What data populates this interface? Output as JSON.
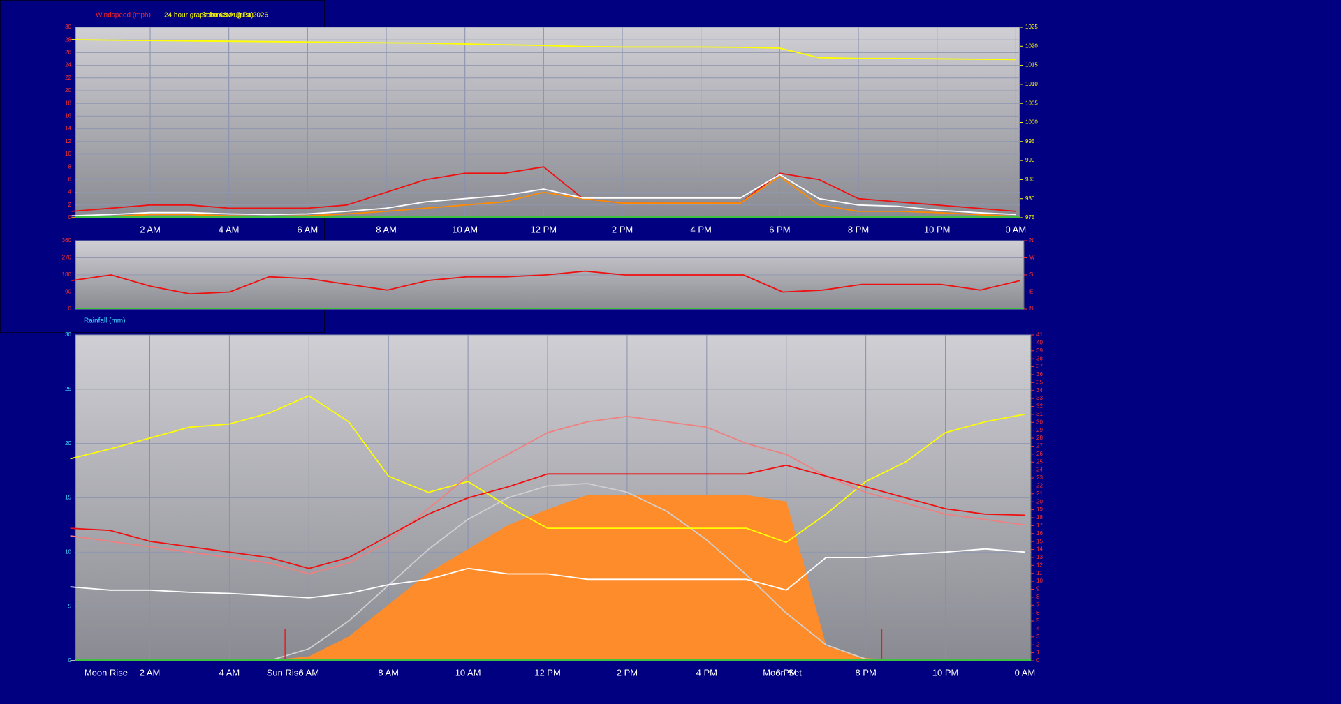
{
  "chart_data": [
    {
      "type": "line",
      "title": "24 hour graph for 08 August 2026",
      "ylabel": "Windspeed (mph)",
      "y2label": "Barometer (hPa)",
      "x": [
        0,
        1,
        2,
        3,
        4,
        5,
        6,
        7,
        8,
        9,
        10,
        11,
        12,
        13,
        14,
        15,
        16,
        17,
        18,
        19,
        20,
        21,
        22,
        23,
        24
      ],
      "xlim": [
        0.1,
        24.1
      ],
      "xticks": [
        {
          "value": 2,
          "label": "2 AM"
        },
        {
          "value": 4,
          "label": "4 AM"
        },
        {
          "value": 6,
          "label": "6 AM"
        },
        {
          "value": 8,
          "label": "8 AM"
        },
        {
          "value": 10,
          "label": "10 AM"
        },
        {
          "value": 12,
          "label": "12 PM"
        },
        {
          "value": 14,
          "label": "2 PM"
        },
        {
          "value": 16,
          "label": "4 PM"
        },
        {
          "value": 18,
          "label": "6 PM"
        },
        {
          "value": 20,
          "label": "8 PM"
        },
        {
          "value": 22,
          "label": "10 PM"
        },
        {
          "value": 24,
          "label": "0 AM"
        }
      ],
      "ylim": [
        0,
        30
      ],
      "yticks": [
        0,
        2,
        4,
        6,
        8,
        10,
        12,
        14,
        16,
        18,
        20,
        22,
        24,
        26,
        28,
        30
      ],
      "y2lim": [
        975,
        1025
      ],
      "y2ticks": [
        975,
        980,
        985,
        990,
        995,
        1000,
        1005,
        1010,
        1015,
        1020,
        1025
      ],
      "series": [
        {
          "color": "#ffff00",
          "axis": "y2",
          "values": [
            1021.7,
            1021.6,
            1021.5,
            1021.4,
            1021.3,
            1021.2,
            1021.1,
            1021,
            1020.9,
            1020.8,
            1020.6,
            1020.4,
            1020.2,
            1019.9,
            1019.8,
            1019.8,
            1019.8,
            1019.7,
            1019.5,
            1017,
            1016.8,
            1016.8,
            1016.7,
            1016.6,
            1016.5
          ]
        },
        {
          "color": "#ee1111",
          "values": [
            1,
            1.5,
            2,
            2,
            1.5,
            1.5,
            1.5,
            2,
            4,
            6,
            7,
            7,
            8,
            3,
            2.3,
            2.3,
            2.3,
            2.3,
            7,
            6,
            3,
            2.5,
            2,
            1.5,
            1
          ]
        },
        {
          "color": "#ff8c00",
          "values": [
            0,
            0.2,
            0.5,
            0.5,
            0.3,
            0.2,
            0.3,
            0.6,
            1,
            1.5,
            2,
            2.5,
            4,
            3,
            2.3,
            2.3,
            2.3,
            2.3,
            6.5,
            2,
            1,
            1,
            0.8,
            0.5,
            0.2
          ]
        },
        {
          "color": "#ffffff",
          "values": [
            0.3,
            0.5,
            0.8,
            0.8,
            0.6,
            0.5,
            0.6,
            1,
            1.5,
            2.5,
            3,
            3.5,
            4.5,
            3.1,
            3.1,
            3.1,
            3.1,
            3.1,
            6.8,
            3,
            2,
            1.8,
            1.2,
            0.8,
            0.5
          ]
        }
      ]
    },
    {
      "type": "line",
      "x": [
        0,
        1,
        2,
        3,
        4,
        5,
        6,
        7,
        8,
        9,
        10,
        11,
        12,
        13,
        14,
        15,
        16,
        17,
        18,
        19,
        20,
        21,
        22,
        23,
        24
      ],
      "xlim": [
        0.1,
        24.1
      ],
      "ylim": [
        0,
        360
      ],
      "yticks": [
        0,
        90,
        180,
        270,
        360
      ],
      "y2lim": [
        0,
        360
      ],
      "y2ticks": [
        {
          "value": 0,
          "label": "N"
        },
        {
          "value": 90,
          "label": "E"
        },
        {
          "value": 180,
          "label": "S"
        },
        {
          "value": 270,
          "label": "W"
        },
        {
          "value": 360,
          "label": "N"
        }
      ],
      "series": [
        {
          "color": "#ee1111",
          "values": [
            150,
            180,
            120,
            80,
            90,
            170,
            160,
            130,
            100,
            150,
            170,
            170,
            180,
            200,
            180,
            180,
            180,
            180,
            90,
            100,
            130,
            130,
            130,
            100,
            150
          ]
        }
      ]
    },
    {
      "type": "line",
      "ylabel": "Rainfall (mm)",
      "x": [
        0,
        1,
        2,
        3,
        4,
        5,
        6,
        7,
        8,
        9,
        10,
        11,
        12,
        13,
        14,
        15,
        16,
        17,
        18,
        19,
        20,
        21,
        22,
        23,
        24
      ],
      "xlim": [
        0.13,
        24.15
      ],
      "xticks": [
        {
          "value": 2,
          "label": "2 AM"
        },
        {
          "value": 4,
          "label": "4 AM"
        },
        {
          "value": 6,
          "label": "6 AM"
        },
        {
          "value": 8,
          "label": "8 AM"
        },
        {
          "value": 10,
          "label": "10 AM"
        },
        {
          "value": 12,
          "label": "12 PM"
        },
        {
          "value": 14,
          "label": "2 PM"
        },
        {
          "value": 16,
          "label": "4 PM"
        },
        {
          "value": 18,
          "label": "6 PM"
        },
        {
          "value": 20,
          "label": "8 PM"
        },
        {
          "value": 22,
          "label": "10 PM"
        },
        {
          "value": 24,
          "label": "0 AM"
        }
      ],
      "ylim": [
        0,
        30
      ],
      "yticks": [
        0,
        5,
        10,
        15,
        20,
        25,
        30
      ],
      "y2lim": [
        0,
        41
      ],
      "y2ticks": [
        0,
        1,
        2,
        3,
        4,
        5,
        6,
        7,
        8,
        9,
        10,
        11,
        12,
        13,
        14,
        15,
        16,
        17,
        18,
        19,
        20,
        21,
        22,
        23,
        24,
        25,
        26,
        27,
        28,
        29,
        30,
        31,
        32,
        33,
        34,
        35,
        36,
        37,
        38,
        39,
        40,
        41
      ],
      "series": [
        {
          "color": "#ff8c2a",
          "axis": "y2",
          "fill": true,
          "values": [
            0,
            0,
            0,
            0,
            0,
            0,
            0.5,
            3,
            7,
            11,
            14,
            17,
            19,
            20.8,
            20.8,
            20.8,
            20.8,
            20.8,
            20,
            1.8,
            0.3,
            0,
            0,
            0,
            0
          ]
        },
        {
          "color": "#d0d0d0",
          "axis": "y2",
          "values": [
            0,
            0,
            0,
            0,
            0,
            0,
            1.5,
            5,
            9.5,
            14,
            17.8,
            20.5,
            22,
            22.3,
            21.2,
            18.8,
            15.2,
            10.8,
            6,
            2,
            0.2,
            0,
            0,
            0,
            0
          ]
        },
        {
          "color": "#ffff00",
          "values": [
            18.6,
            19.5,
            20.5,
            21.5,
            21.8,
            22.8,
            24.4,
            22,
            17,
            15.5,
            16.5,
            14.2,
            12.2,
            12.2,
            12.2,
            12.2,
            12.2,
            12.2,
            10.9,
            13.5,
            16.5,
            18.3,
            21,
            22,
            22.7
          ]
        },
        {
          "color": "#f08080",
          "values": [
            11.5,
            11,
            10.5,
            10,
            9.5,
            9,
            8,
            9,
            11,
            14,
            17,
            19,
            21,
            22,
            22.5,
            22,
            21.5,
            20,
            19,
            17,
            15.5,
            14.5,
            13.5,
            13,
            12.5
          ]
        },
        {
          "color": "#ee1111",
          "values": [
            12.2,
            12,
            11,
            10.5,
            10,
            9.5,
            8.5,
            9.5,
            11.5,
            13.5,
            15,
            16,
            17.2,
            17.2,
            17.2,
            17.2,
            17.2,
            17.2,
            18,
            17,
            16,
            15,
            14,
            13.5,
            13.4
          ]
        },
        {
          "color": "#ffffff",
          "values": [
            6.8,
            6.5,
            6.5,
            6.3,
            6.2,
            6,
            5.8,
            6.2,
            7,
            7.5,
            8.5,
            8,
            8,
            7.5,
            7.5,
            7.5,
            7.5,
            7.5,
            6.5,
            9.5,
            9.5,
            9.8,
            10,
            10.3,
            10
          ]
        }
      ],
      "markers": [
        5.4,
        20.4
      ],
      "annotations": [
        {
          "text": "Moon Rise",
          "x": 0.9
        },
        {
          "text": "Sun Rise",
          "x": 5.4
        },
        {
          "text": "Moon Set",
          "x": 17.9
        }
      ]
    }
  ]
}
